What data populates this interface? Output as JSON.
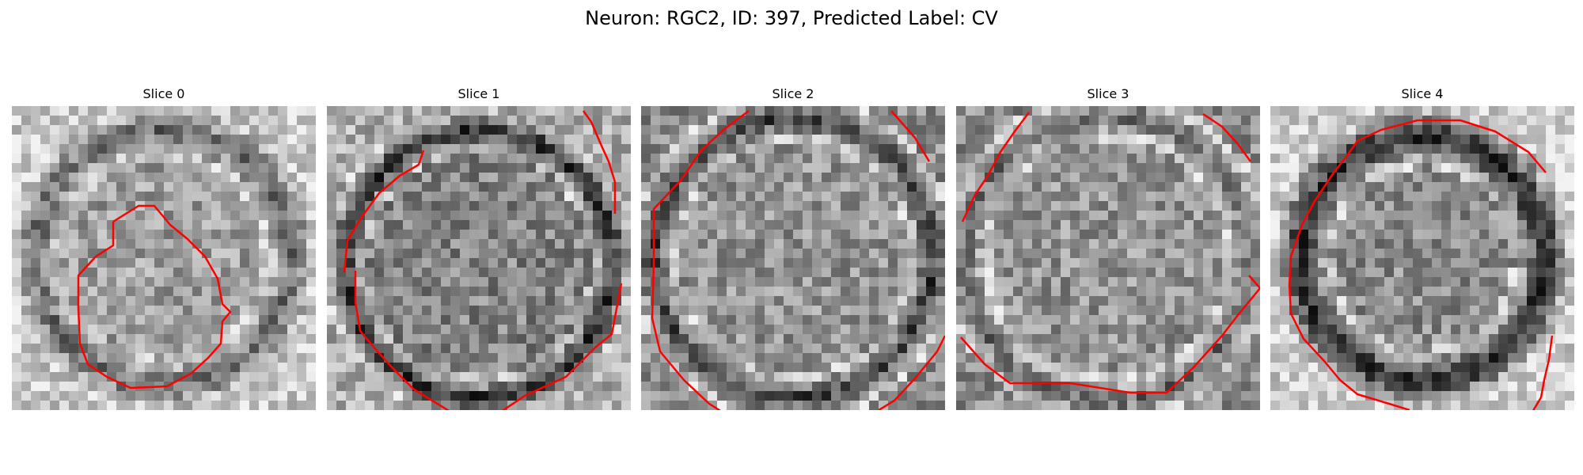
{
  "figure": {
    "title": "Neuron: RGC2, ID: 397, Predicted Label: CV"
  },
  "colors": {
    "contour": "#ff0000",
    "background": "#ffffff",
    "colormap": "grayscale"
  },
  "slices": [
    {
      "title": "Slice 0"
    },
    {
      "title": "Slice 1"
    },
    {
      "title": "Slice 2"
    },
    {
      "title": "Slice 3"
    },
    {
      "title": "Slice 4"
    }
  ]
}
